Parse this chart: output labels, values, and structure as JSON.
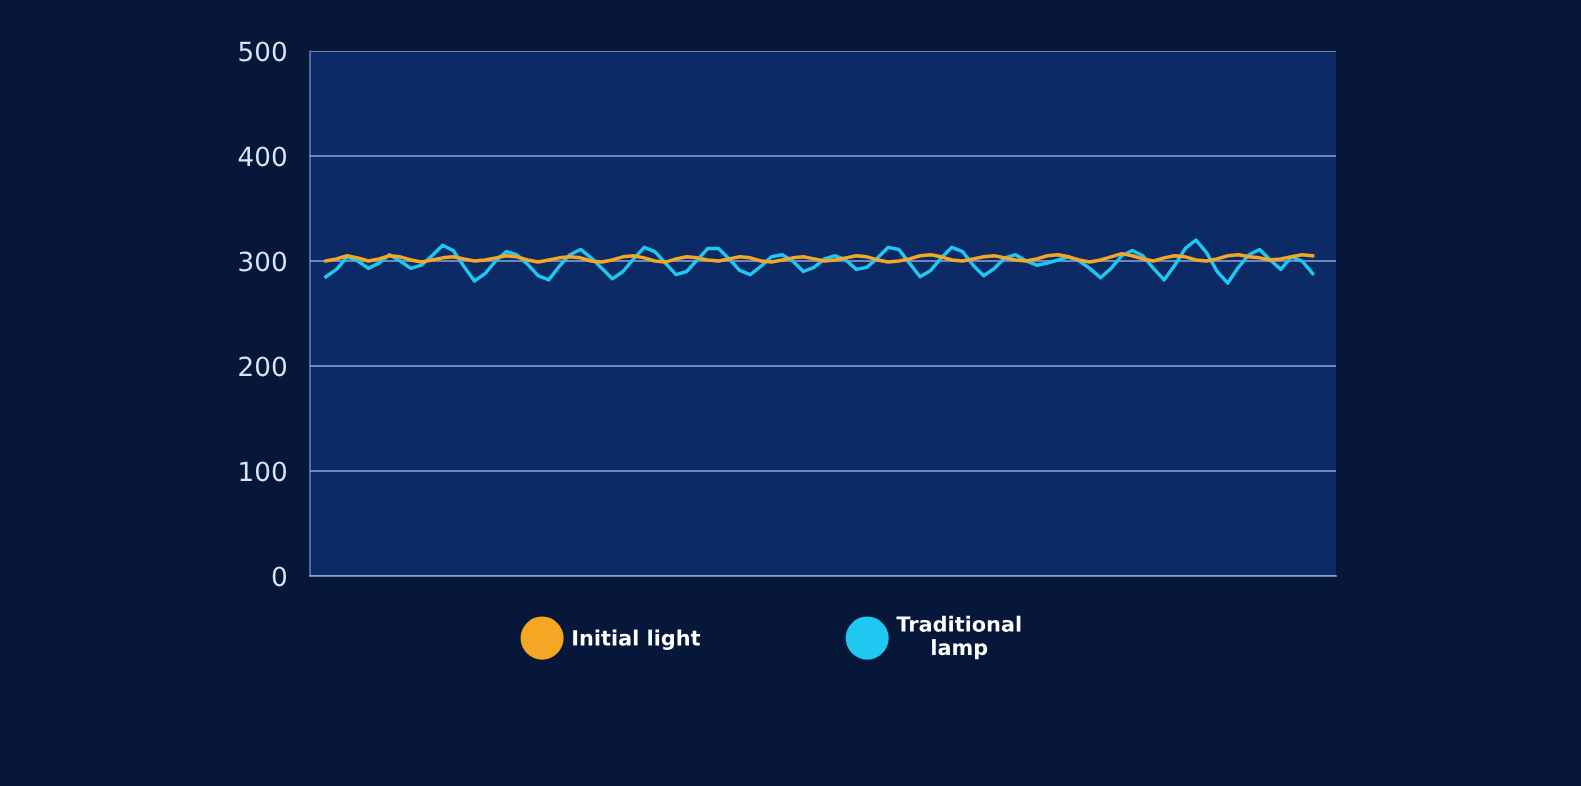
{
  "chart_data": {
    "type": "line",
    "categories": [
      null,
      null,
      null,
      null,
      null,
      null,
      null,
      null,
      null,
      null,
      null,
      null,
      null,
      null,
      null,
      null,
      null,
      null,
      null,
      null,
      null,
      null,
      null,
      null,
      null,
      null,
      null,
      null,
      null,
      null,
      null,
      null,
      null,
      null,
      null,
      null,
      null,
      null,
      null,
      null,
      null,
      null,
      null,
      null,
      null,
      null,
      null,
      null,
      null,
      null,
      null,
      null,
      null,
      null,
      null,
      null,
      null,
      null,
      null,
      null,
      null,
      null,
      null,
      null,
      null,
      null,
      null,
      null,
      null,
      null,
      null,
      null,
      null,
      null,
      null,
      null,
      null,
      null,
      null,
      null,
      null,
      null,
      null,
      null,
      null,
      null,
      null,
      null,
      null,
      null,
      null,
      null,
      null,
      null
    ],
    "series": [
      {
        "name": "Traditional\nlamp",
        "color": "#1ec8f0",
        "values": [
          285,
          292,
          304,
          300,
          293,
          298,
          306,
          300,
          293,
          296,
          305,
          315,
          310,
          295,
          281,
          288,
          300,
          309,
          306,
          297,
          286,
          282,
          295,
          306,
          311,
          303,
          293,
          283,
          290,
          302,
          313,
          309,
          298,
          287,
          290,
          301,
          312,
          312,
          302,
          291,
          287,
          295,
          304,
          306,
          300,
          290,
          294,
          302,
          305,
          301,
          292,
          294,
          303,
          313,
          311,
          298,
          285,
          291,
          303,
          313,
          309,
          296,
          286,
          293,
          303,
          306,
          300,
          296,
          298,
          301,
          304,
          300,
          293,
          284,
          293,
          305,
          310,
          305,
          293,
          282,
          296,
          312,
          320,
          308,
          290,
          279,
          294,
          306,
          311,
          301,
          292,
          304,
          300,
          288
        ]
      },
      {
        "name": "Initial light",
        "color": "#f5a623",
        "values": [
          300,
          302,
          305,
          303,
          300,
          302,
          305,
          304,
          301,
          299,
          301,
          303,
          304,
          302,
          300,
          301,
          303,
          305,
          304,
          301,
          299,
          301,
          303,
          304,
          303,
          300,
          299,
          301,
          304,
          305,
          303,
          300,
          299,
          302,
          304,
          303,
          301,
          300,
          302,
          304,
          303,
          300,
          299,
          301,
          303,
          304,
          302,
          300,
          301,
          303,
          305,
          304,
          301,
          299,
          300,
          302,
          305,
          306,
          304,
          301,
          300,
          302,
          304,
          305,
          303,
          301,
          300,
          302,
          305,
          306,
          304,
          301,
          299,
          301,
          304,
          307,
          305,
          302,
          300,
          303,
          305,
          304,
          301,
          300,
          302,
          305,
          306,
          304,
          303,
          301,
          302,
          304,
          306,
          305
        ]
      }
    ],
    "ylim": [
      0,
      500
    ],
    "yticks": [
      0,
      100,
      200,
      300,
      400,
      500
    ],
    "grid": "y",
    "legend": "bottom",
    "tick_labels": "y",
    "marker": "none",
    "line_style": "solid"
  }
}
